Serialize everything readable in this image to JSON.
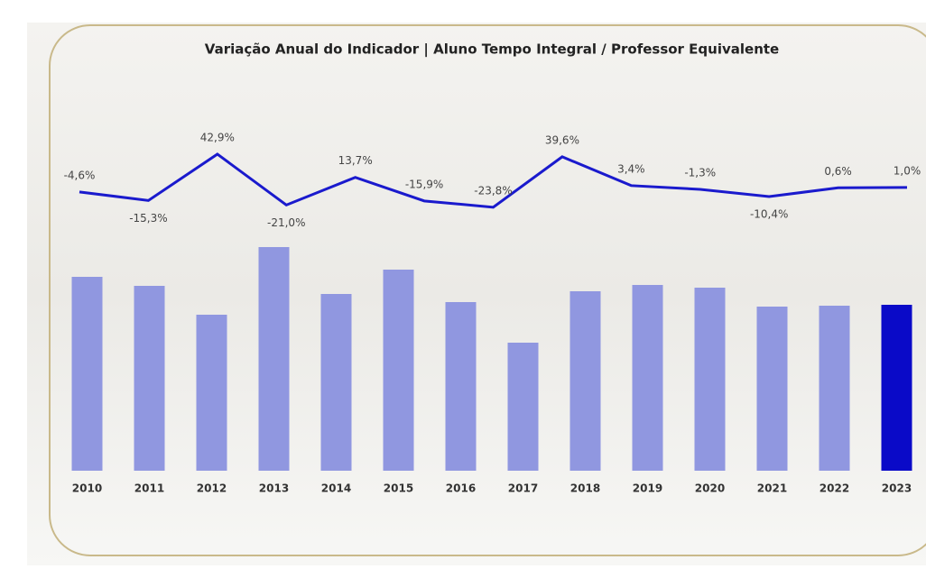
{
  "chart_data": [
    {
      "type": "bar",
      "title": "Variação Anual do Indicador | Aluno Tempo Integral / Professor Equivalente",
      "categories": [
        "2010",
        "2011",
        "2012",
        "2013",
        "2014",
        "2015",
        "2016",
        "2017",
        "2018",
        "2019",
        "2020",
        "2021",
        "2022",
        "2023"
      ],
      "values": [
        21.5,
        20.5,
        17.3,
        24.8,
        19.6,
        22.3,
        18.7,
        14.2,
        19.9,
        20.6,
        20.3,
        18.2,
        18.3,
        18.4
      ],
      "colors": [
        "#9097e0",
        "#9097e0",
        "#9097e0",
        "#9097e0",
        "#9097e0",
        "#9097e0",
        "#9097e0",
        "#9097e0",
        "#9097e0",
        "#9097e0",
        "#9097e0",
        "#9097e0",
        "#9097e0",
        "#0a0ac8"
      ],
      "ylim": [
        0,
        38.2
      ]
    },
    {
      "type": "line",
      "color": "#1a1acd",
      "values": [
        -4.6,
        -15.3,
        42.9,
        -21.0,
        13.7,
        -15.9,
        -23.8,
        39.6,
        3.4,
        -1.3,
        -10.4,
        0.6,
        1.0
      ],
      "value_labels": [
        "-4,6%",
        "-15,3%",
        "42,9%",
        "-21,0%",
        "13,7%",
        "-15,9%",
        "-23,8%",
        "39,6%",
        "3,4%",
        "-1,3%",
        "-10,4%",
        "0,6%",
        "1,0%"
      ],
      "ylim": [
        -355,
        78
      ]
    }
  ]
}
